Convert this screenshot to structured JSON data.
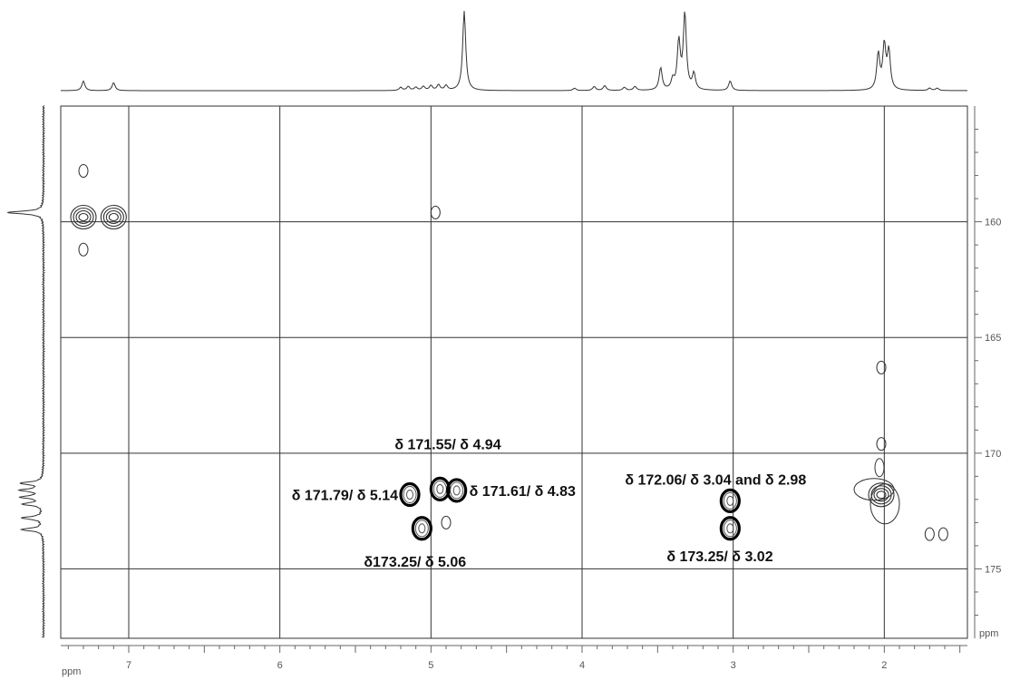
{
  "chart_data": {
    "type": "scatter",
    "subtype": "2D NMR contour plot (HMBC) with 1D projections",
    "title": "",
    "x_axis": {
      "label": "ppm",
      "range": [
        7.45,
        1.45
      ],
      "reversed": true,
      "ticks": [
        7,
        6,
        5,
        4,
        3,
        2
      ]
    },
    "y_axis": {
      "label": "ppm",
      "range": [
        155.0,
        178.0
      ],
      "reversed": true,
      "position": "right",
      "ticks": [
        160,
        165,
        170,
        175
      ]
    },
    "grid": true,
    "peaks": [
      {
        "x": 7.3,
        "y": 159.8,
        "type": "strong"
      },
      {
        "x": 7.1,
        "y": 159.8,
        "type": "strong"
      },
      {
        "x": 7.3,
        "y": 157.8,
        "type": "weak"
      },
      {
        "x": 7.3,
        "y": 161.2,
        "type": "weak"
      },
      {
        "x": 4.97,
        "y": 159.6,
        "type": "weak"
      },
      {
        "x": 5.14,
        "y": 171.79,
        "type": "marked"
      },
      {
        "x": 4.94,
        "y": 171.55,
        "type": "marked"
      },
      {
        "x": 4.83,
        "y": 171.61,
        "type": "marked"
      },
      {
        "x": 5.06,
        "y": 173.25,
        "type": "marked"
      },
      {
        "x": 3.02,
        "y": 172.06,
        "type": "marked"
      },
      {
        "x": 3.02,
        "y": 173.25,
        "type": "marked"
      },
      {
        "x": 4.9,
        "y": 173.0,
        "type": "weak"
      },
      {
        "x": 2.02,
        "y": 171.8,
        "type": "strong"
      },
      {
        "x": 2.02,
        "y": 166.3,
        "type": "weak"
      },
      {
        "x": 2.02,
        "y": 169.6,
        "type": "weak"
      },
      {
        "x": 1.7,
        "y": 173.5,
        "type": "weak"
      },
      {
        "x": 1.61,
        "y": 173.5,
        "type": "weak"
      }
    ],
    "annotations": [
      {
        "text": "δ 171.55/ δ 4.94",
        "x": 4.94,
        "y": 171.55
      },
      {
        "text": "δ 171.79/ δ 5.14",
        "x": 5.14,
        "y": 171.79
      },
      {
        "text": "δ 171.61/ δ 4.83",
        "x": 4.83,
        "y": 171.61
      },
      {
        "text": "δ173.25/ δ 5.06",
        "x": 5.06,
        "y": 173.25
      },
      {
        "text": "δ 172.06/ δ 3.04 and δ 2.98",
        "x": 3.02,
        "y": 172.06
      },
      {
        "text": "δ 173.25/ δ 3.02",
        "x": 3.02,
        "y": 173.25
      }
    ],
    "projection_1h_peaks": [
      {
        "x": 7.3,
        "h": 0.12
      },
      {
        "x": 7.1,
        "h": 0.1
      },
      {
        "x": 5.2,
        "h": 0.04
      },
      {
        "x": 5.15,
        "h": 0.05
      },
      {
        "x": 5.1,
        "h": 0.04
      },
      {
        "x": 5.05,
        "h": 0.05
      },
      {
        "x": 5.0,
        "h": 0.06
      },
      {
        "x": 4.95,
        "h": 0.07
      },
      {
        "x": 4.9,
        "h": 0.06
      },
      {
        "x": 4.78,
        "h": 1.0
      },
      {
        "x": 4.05,
        "h": 0.03
      },
      {
        "x": 3.92,
        "h": 0.05
      },
      {
        "x": 3.85,
        "h": 0.06
      },
      {
        "x": 3.72,
        "h": 0.04
      },
      {
        "x": 3.65,
        "h": 0.05
      },
      {
        "x": 3.48,
        "h": 0.28
      },
      {
        "x": 3.4,
        "h": 0.12
      },
      {
        "x": 3.36,
        "h": 0.6
      },
      {
        "x": 3.32,
        "h": 0.95
      },
      {
        "x": 3.26,
        "h": 0.2
      },
      {
        "x": 3.02,
        "h": 0.12
      },
      {
        "x": 2.04,
        "h": 0.45
      },
      {
        "x": 2.0,
        "h": 0.55
      },
      {
        "x": 1.97,
        "h": 0.48
      },
      {
        "x": 1.7,
        "h": 0.03
      },
      {
        "x": 1.65,
        "h": 0.03
      }
    ],
    "projection_13c_peaks": [
      {
        "y": 159.6,
        "h": 1.0
      },
      {
        "y": 171.3,
        "h": 0.62
      },
      {
        "y": 171.6,
        "h": 0.6
      },
      {
        "y": 171.9,
        "h": 0.58
      },
      {
        "y": 172.2,
        "h": 0.55
      },
      {
        "y": 172.8,
        "h": 0.58
      },
      {
        "y": 173.3,
        "h": 0.6
      }
    ]
  }
}
